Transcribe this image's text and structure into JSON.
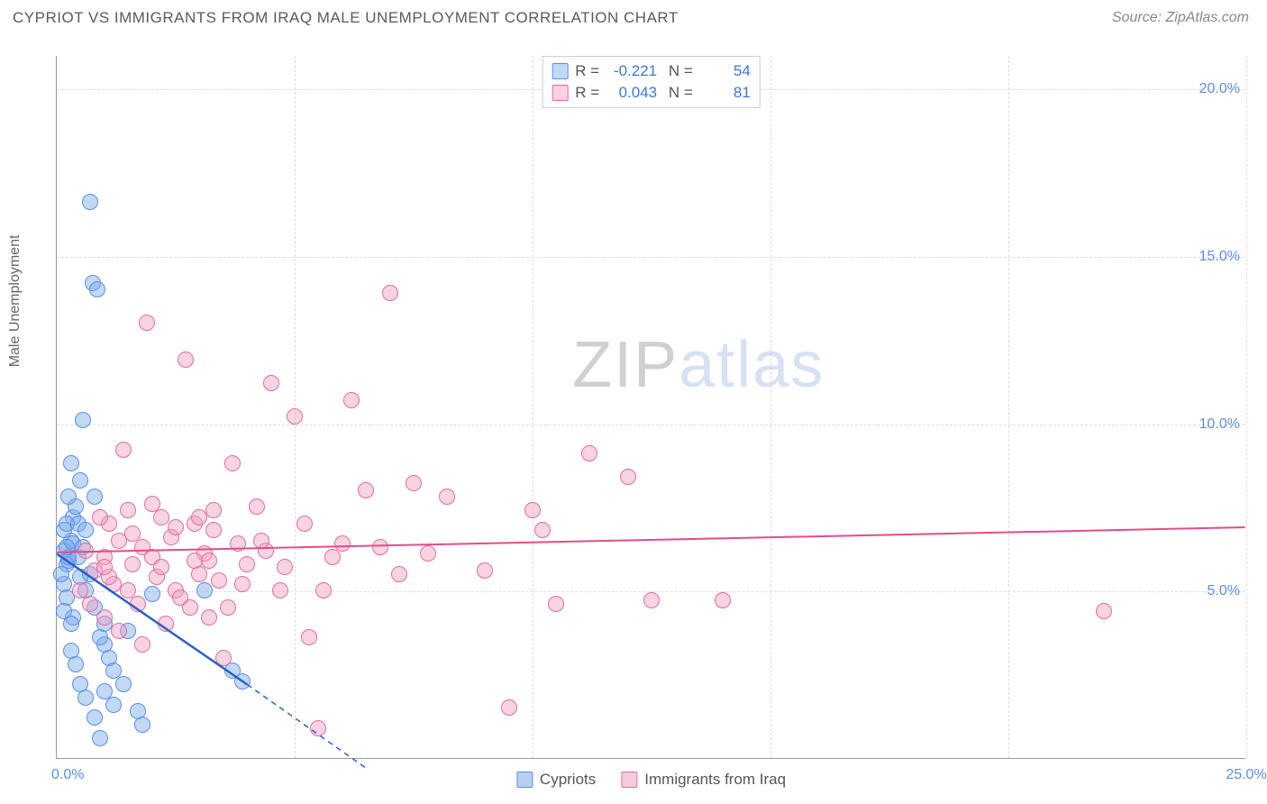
{
  "title": "CYPRIOT VS IMMIGRANTS FROM IRAQ MALE UNEMPLOYMENT CORRELATION CHART",
  "source": "Source: ZipAtlas.com",
  "ylabel": "Male Unemployment",
  "watermark": {
    "prefix": "ZIP",
    "suffix": "atlas"
  },
  "chart": {
    "type": "scatter",
    "background_color": "#ffffff",
    "grid_color": "#dddddd",
    "axis_color": "#999999",
    "xlim": [
      0,
      25
    ],
    "ylim": [
      0,
      21
    ],
    "xticks": [
      5,
      10,
      15,
      20,
      25
    ],
    "yticks": [
      {
        "v": 5,
        "label": "5.0%"
      },
      {
        "v": 10,
        "label": "10.0%"
      },
      {
        "v": 15,
        "label": "15.0%"
      },
      {
        "v": 20,
        "label": "20.0%"
      }
    ],
    "xtick_labels": [
      "",
      "",
      "",
      "",
      "25.0%"
    ],
    "origin_label": "0.0%",
    "tick_color": "#5b8def",
    "tick_fontsize": 16,
    "series": [
      {
        "name": "Cypriots",
        "marker_fill": "rgba(120,170,230,0.45)",
        "marker_stroke": "#5b8def",
        "marker_radius": 9,
        "trend_color": "#2b5fc7",
        "trend_width": 2.5,
        "trend": {
          "x1": 0,
          "y1": 6.1,
          "x2": 4.0,
          "y2": 2.2,
          "dash_extend_x": 6.5,
          "dash_extend_y": -0.3
        },
        "R": "-0.221",
        "N": "54",
        "points": [
          {
            "x": 0.15,
            "y": 6.2
          },
          {
            "x": 0.2,
            "y": 5.8
          },
          {
            "x": 0.25,
            "y": 5.9
          },
          {
            "x": 0.3,
            "y": 6.5
          },
          {
            "x": 0.35,
            "y": 7.2
          },
          {
            "x": 0.4,
            "y": 7.5
          },
          {
            "x": 0.15,
            "y": 5.2
          },
          {
            "x": 0.2,
            "y": 4.8
          },
          {
            "x": 0.35,
            "y": 4.2
          },
          {
            "x": 0.5,
            "y": 8.3
          },
          {
            "x": 0.55,
            "y": 10.1
          },
          {
            "x": 0.7,
            "y": 16.6
          },
          {
            "x": 0.75,
            "y": 14.2
          },
          {
            "x": 0.85,
            "y": 14.0
          },
          {
            "x": 0.3,
            "y": 3.2
          },
          {
            "x": 0.4,
            "y": 2.8
          },
          {
            "x": 0.5,
            "y": 2.2
          },
          {
            "x": 0.6,
            "y": 1.8
          },
          {
            "x": 0.8,
            "y": 1.2
          },
          {
            "x": 0.9,
            "y": 0.6
          },
          {
            "x": 1.0,
            "y": 3.4
          },
          {
            "x": 1.1,
            "y": 3.0
          },
          {
            "x": 1.2,
            "y": 2.6
          },
          {
            "x": 1.4,
            "y": 2.2
          },
          {
            "x": 1.5,
            "y": 3.8
          },
          {
            "x": 1.7,
            "y": 1.4
          },
          {
            "x": 1.8,
            "y": 1.0
          },
          {
            "x": 2.0,
            "y": 4.9
          },
          {
            "x": 0.25,
            "y": 7.8
          },
          {
            "x": 0.1,
            "y": 5.5
          },
          {
            "x": 0.15,
            "y": 6.8
          },
          {
            "x": 0.2,
            "y": 7.0
          },
          {
            "x": 0.45,
            "y": 6.0
          },
          {
            "x": 0.5,
            "y": 5.4
          },
          {
            "x": 0.6,
            "y": 5.0
          },
          {
            "x": 0.7,
            "y": 5.5
          },
          {
            "x": 0.8,
            "y": 7.8
          },
          {
            "x": 0.9,
            "y": 3.6
          },
          {
            "x": 1.0,
            "y": 4.0
          },
          {
            "x": 1.2,
            "y": 1.6
          },
          {
            "x": 0.3,
            "y": 8.8
          },
          {
            "x": 0.35,
            "y": 6.4
          },
          {
            "x": 0.25,
            "y": 6.0
          },
          {
            "x": 0.55,
            "y": 6.3
          },
          {
            "x": 0.45,
            "y": 7.0
          },
          {
            "x": 0.2,
            "y": 6.3
          },
          {
            "x": 3.1,
            "y": 5.0
          },
          {
            "x": 3.7,
            "y": 2.6
          },
          {
            "x": 3.9,
            "y": 2.3
          },
          {
            "x": 0.6,
            "y": 6.8
          },
          {
            "x": 0.15,
            "y": 4.4
          },
          {
            "x": 0.3,
            "y": 4.0
          },
          {
            "x": 0.8,
            "y": 4.5
          },
          {
            "x": 1.0,
            "y": 2.0
          }
        ]
      },
      {
        "name": "Immigrants from Iraq",
        "marker_fill": "rgba(240,160,190,0.45)",
        "marker_stroke": "#e66aa0",
        "marker_radius": 9,
        "trend_color": "#e24d8a",
        "trend_width": 2,
        "trend": {
          "x1": 0,
          "y1": 6.15,
          "x2": 25,
          "y2": 6.9
        },
        "R": "0.043",
        "N": "81",
        "points": [
          {
            "x": 0.6,
            "y": 6.2
          },
          {
            "x": 0.8,
            "y": 5.6
          },
          {
            "x": 1.0,
            "y": 6.0
          },
          {
            "x": 1.1,
            "y": 7.0
          },
          {
            "x": 1.2,
            "y": 5.2
          },
          {
            "x": 1.3,
            "y": 6.5
          },
          {
            "x": 1.4,
            "y": 9.2
          },
          {
            "x": 1.5,
            "y": 7.4
          },
          {
            "x": 1.6,
            "y": 5.8
          },
          {
            "x": 1.7,
            "y": 4.6
          },
          {
            "x": 1.8,
            "y": 6.3
          },
          {
            "x": 1.9,
            "y": 13.0
          },
          {
            "x": 2.0,
            "y": 6.0
          },
          {
            "x": 2.1,
            "y": 5.4
          },
          {
            "x": 2.2,
            "y": 7.2
          },
          {
            "x": 2.3,
            "y": 4.0
          },
          {
            "x": 2.4,
            "y": 6.6
          },
          {
            "x": 2.5,
            "y": 5.0
          },
          {
            "x": 2.7,
            "y": 11.9
          },
          {
            "x": 2.8,
            "y": 4.5
          },
          {
            "x": 2.9,
            "y": 7.0
          },
          {
            "x": 3.0,
            "y": 5.5
          },
          {
            "x": 3.1,
            "y": 6.1
          },
          {
            "x": 3.2,
            "y": 4.2
          },
          {
            "x": 3.3,
            "y": 6.8
          },
          {
            "x": 3.4,
            "y": 5.3
          },
          {
            "x": 3.5,
            "y": 3.0
          },
          {
            "x": 3.7,
            "y": 8.8
          },
          {
            "x": 3.8,
            "y": 6.4
          },
          {
            "x": 4.0,
            "y": 5.8
          },
          {
            "x": 4.2,
            "y": 7.5
          },
          {
            "x": 4.4,
            "y": 6.2
          },
          {
            "x": 4.5,
            "y": 11.2
          },
          {
            "x": 4.7,
            "y": 5.0
          },
          {
            "x": 5.0,
            "y": 10.2
          },
          {
            "x": 5.3,
            "y": 3.6
          },
          {
            "x": 5.5,
            "y": 0.9
          },
          {
            "x": 5.8,
            "y": 6.0
          },
          {
            "x": 6.2,
            "y": 10.7
          },
          {
            "x": 6.5,
            "y": 8.0
          },
          {
            "x": 6.8,
            "y": 6.3
          },
          {
            "x": 7.0,
            "y": 13.9
          },
          {
            "x": 7.2,
            "y": 5.5
          },
          {
            "x": 7.5,
            "y": 8.2
          },
          {
            "x": 7.8,
            "y": 6.1
          },
          {
            "x": 8.2,
            "y": 7.8
          },
          {
            "x": 9.0,
            "y": 5.6
          },
          {
            "x": 9.5,
            "y": 1.5
          },
          {
            "x": 10.0,
            "y": 7.4
          },
          {
            "x": 10.2,
            "y": 6.8
          },
          {
            "x": 10.5,
            "y": 4.6
          },
          {
            "x": 11.2,
            "y": 9.1
          },
          {
            "x": 12.0,
            "y": 8.4
          },
          {
            "x": 12.5,
            "y": 4.7
          },
          {
            "x": 14.0,
            "y": 4.7
          },
          {
            "x": 22.0,
            "y": 4.4
          },
          {
            "x": 0.5,
            "y": 5.0
          },
          {
            "x": 0.7,
            "y": 4.6
          },
          {
            "x": 0.9,
            "y": 7.2
          },
          {
            "x": 1.0,
            "y": 4.2
          },
          {
            "x": 1.1,
            "y": 5.4
          },
          {
            "x": 1.3,
            "y": 3.8
          },
          {
            "x": 1.5,
            "y": 5.0
          },
          {
            "x": 1.8,
            "y": 3.4
          },
          {
            "x": 2.0,
            "y": 7.6
          },
          {
            "x": 2.2,
            "y": 5.7
          },
          {
            "x": 2.5,
            "y": 6.9
          },
          {
            "x": 2.6,
            "y": 4.8
          },
          {
            "x": 3.0,
            "y": 7.2
          },
          {
            "x": 3.2,
            "y": 5.9
          },
          {
            "x": 3.6,
            "y": 4.5
          },
          {
            "x": 3.9,
            "y": 5.2
          },
          {
            "x": 4.3,
            "y": 6.5
          },
          {
            "x": 4.8,
            "y": 5.7
          },
          {
            "x": 5.2,
            "y": 7.0
          },
          {
            "x": 5.6,
            "y": 5.0
          },
          {
            "x": 6.0,
            "y": 6.4
          },
          {
            "x": 2.9,
            "y": 5.9
          },
          {
            "x": 3.3,
            "y": 7.4
          },
          {
            "x": 1.6,
            "y": 6.7
          },
          {
            "x": 1.0,
            "y": 5.7
          }
        ]
      }
    ],
    "legend_bottom": [
      {
        "label": "Cypriots",
        "fill": "rgba(120,170,230,0.55)",
        "stroke": "#5b8def"
      },
      {
        "label": "Immigrants from Iraq",
        "fill": "rgba(240,160,190,0.55)",
        "stroke": "#e66aa0"
      }
    ]
  }
}
